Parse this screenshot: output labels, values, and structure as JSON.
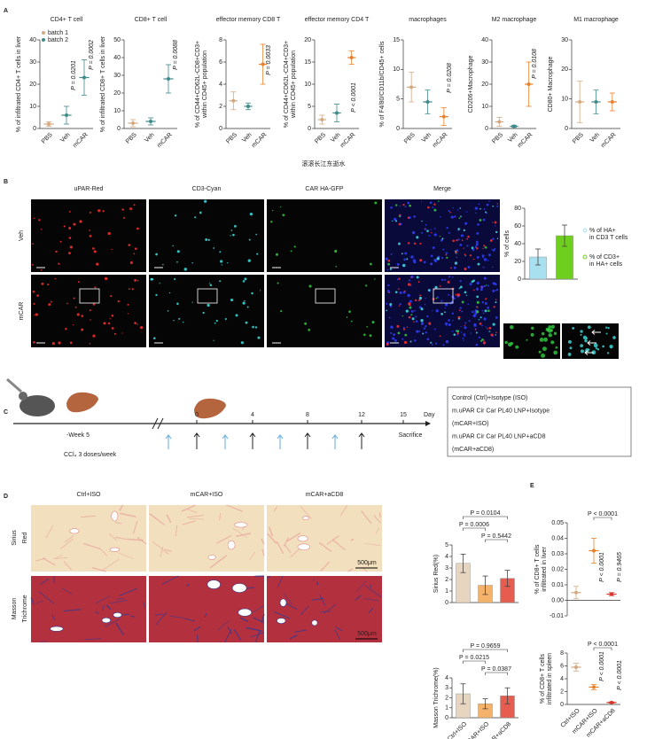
{
  "chart_data": [
    {
      "type": "dot",
      "title": "CD4+ T cell",
      "y_label": [
        "% of infiltrated CD4+ T cells in liver"
      ],
      "categories": [
        "PBS",
        "Veh",
        "mCAR"
      ],
      "values": [
        2,
        6,
        23
      ],
      "errors": [
        1,
        4,
        8
      ],
      "colors": [
        "#d4a980",
        "#3e8a8a",
        "#3e8a8a"
      ],
      "ylim": [
        0,
        40
      ],
      "yticks": [
        0,
        10,
        20,
        30,
        40
      ],
      "legend": [
        {
          "name": "batch 1",
          "color": "#d4a980"
        },
        {
          "name": "batch 2",
          "color": "#3e8a8a"
        }
      ],
      "annotations": [
        {
          "text": "P = 0.0201",
          "color": "#333333"
        },
        {
          "text": "P = 0.0002",
          "color": "#333333"
        }
      ]
    },
    {
      "type": "dot",
      "title": "CD8+ T cell",
      "y_label": [
        "% of infiltrated CD8+ T cells in liver"
      ],
      "categories": [
        "PBS",
        "Veh",
        "mCAR"
      ],
      "values": [
        3,
        4,
        28
      ],
      "errors": [
        2,
        2,
        8
      ],
      "colors": [
        "#d4a980",
        "#3e8a8a",
        "#3e8a8a"
      ],
      "ylim": [
        0,
        50
      ],
      "yticks": [
        0,
        10,
        20,
        30,
        40,
        50
      ],
      "annotations": [
        {
          "text": "P = 0.0088",
          "color": "#333333"
        }
      ]
    },
    {
      "type": "dot",
      "title": "effector memory CD8 T",
      "y_label": [
        "% of CD44+CD62L-CD8+CD3+",
        "within CD45+ population"
      ],
      "categories": [
        "PBS",
        "Veh",
        "mCAR"
      ],
      "values": [
        2.5,
        2,
        5.8
      ],
      "errors": [
        0.8,
        0.3,
        1.8
      ],
      "colors": [
        "#d4a980",
        "#3e8a8a",
        "#e8812a"
      ],
      "ylim": [
        0,
        8
      ],
      "yticks": [
        0,
        2,
        4,
        6,
        8
      ],
      "annotations": [
        {
          "text": "P = 0.0033",
          "color": "#e8812a"
        }
      ]
    },
    {
      "type": "dot",
      "title": "effector memory CD4 T",
      "y_label": [
        "% of CD44+CD62L-CD4+CD3+",
        "within CD45+ population"
      ],
      "categories": [
        "PBS",
        "Veh",
        "mCAR"
      ],
      "values": [
        2,
        3.5,
        16
      ],
      "errors": [
        1,
        2,
        1.5
      ],
      "colors": [
        "#d4a980",
        "#3e8a8a",
        "#e8812a"
      ],
      "ylim": [
        0,
        20
      ],
      "yticks": [
        0,
        5,
        10,
        15,
        20
      ],
      "annotations": [
        {
          "text": "P < 0.0001",
          "color": "#e8812a"
        }
      ]
    },
    {
      "type": "dot",
      "title": "macrophages",
      "y_label": [
        "% of F4/80/CD11b/CD45+ cells"
      ],
      "categories": [
        "PBS",
        "Veh",
        "mCAR"
      ],
      "values": [
        7,
        4.5,
        2
      ],
      "errors": [
        2.5,
        2,
        1.5
      ],
      "colors": [
        "#d4a980",
        "#3e8a8a",
        "#e8812a"
      ],
      "ylim": [
        0,
        15
      ],
      "yticks": [
        0,
        5,
        10,
        15
      ],
      "annotations": [
        {
          "text": "P = 0.0208",
          "color": "#e8812a"
        }
      ]
    },
    {
      "type": "dot",
      "title": "M2 macrophage",
      "y_label": [
        "CD206+Macrophage"
      ],
      "categories": [
        "PBS",
        "Veh",
        "mCAR"
      ],
      "values": [
        3,
        1,
        20
      ],
      "errors": [
        2,
        0.5,
        10
      ],
      "colors": [
        "#d4a980",
        "#3e8a8a",
        "#e8812a"
      ],
      "ylim": [
        0,
        40
      ],
      "yticks": [
        0,
        10,
        20,
        30,
        40
      ],
      "annotations": [
        {
          "text": "P = 0.0108",
          "color": "#e8812a"
        }
      ]
    },
    {
      "type": "dot",
      "title": "M1 macrophage",
      "y_label": [
        "CD80+ Macrophage"
      ],
      "categories": [
        "PBS",
        "Veh",
        "mCAR"
      ],
      "values": [
        9,
        9,
        9
      ],
      "errors": [
        7,
        4,
        3
      ],
      "colors": [
        "#d4a980",
        "#3e8a8a",
        "#e8812a"
      ],
      "ylim": [
        0,
        30
      ],
      "yticks": [
        0,
        10,
        20,
        30
      ]
    },
    {
      "type": "bar",
      "y_label": [
        "% of cells"
      ],
      "categories": [
        null,
        null
      ],
      "values": [
        25,
        49
      ],
      "errors": [
        9,
        12
      ],
      "colors": [
        "#a8e0f0",
        "#6fcf1f"
      ],
      "ylim": [
        0,
        80
      ],
      "yticks": [
        0,
        20,
        40,
        60,
        80
      ],
      "legend_lines": [
        [
          "% of HA+",
          "in CD3 T cells"
        ],
        [
          "% of CD3+",
          "in HA+ cells"
        ]
      ]
    },
    {
      "type": "bar",
      "y_label": [
        "Sirius Red(%)"
      ],
      "categories": [
        null,
        null,
        null
      ],
      "values": [
        3.4,
        1.5,
        2.1
      ],
      "errors": [
        0.8,
        0.8,
        0.7
      ],
      "colors": [
        "#e8d5bf",
        "#f5b26b",
        "#e65c4f"
      ],
      "ylim": [
        0,
        5
      ],
      "yticks": [
        0,
        1,
        2,
        3,
        4,
        5
      ],
      "brackets": [
        "P = 0.0104",
        "P = 0.0006",
        "P = 0.5442"
      ]
    },
    {
      "type": "bar",
      "y_label": [
        "Masson Trichrome(%)"
      ],
      "categories": [
        "Ctrl+ISO",
        "mCAR+ISO",
        "mCAR+aCD8"
      ],
      "values": [
        2.4,
        1.4,
        2.2
      ],
      "errors": [
        1.0,
        0.5,
        0.8
      ],
      "colors": [
        "#e8d5bf",
        "#f5b26b",
        "#e65c4f"
      ],
      "ylim": [
        0,
        4
      ],
      "yticks": [
        0,
        1,
        2,
        3,
        4
      ],
      "brackets": [
        "P = 0.9659",
        "P = 0.0215",
        "P = 0.0387"
      ]
    },
    {
      "type": "dot",
      "y_label": [
        "% of  CD8+ T cells",
        "infiltrated in liver"
      ],
      "categories": [
        null,
        null,
        null
      ],
      "values": [
        0.005,
        0.032,
        0.004
      ],
      "errors": [
        0.004,
        0.008,
        0.001
      ],
      "colors": [
        "#d4a980",
        "#e8812a",
        "#d9342b"
      ],
      "ylim": [
        -0.01,
        0.05
      ],
      "yticks": [
        -0.01,
        {
          "value": 0,
          "label": "0.00"
        },
        0.01,
        0.02,
        0.03,
        0.04,
        0.05
      ],
      "brackets": [
        "P < 0.0001"
      ],
      "annotations": [
        {
          "text": "P < 0.0001",
          "color": "#e8812a"
        },
        {
          "text": "P = 0.9465",
          "color": "#d9342b"
        }
      ]
    },
    {
      "type": "dot",
      "y_label": [
        "% of CD8+ T cells",
        "infiltrated in spleen"
      ],
      "categories": [
        "Ctrl+ISO",
        "mCAR+ISO",
        "mCAR+aCD8"
      ],
      "values": [
        5.8,
        2.7,
        0.3
      ],
      "errors": [
        0.6,
        0.4,
        0.1
      ],
      "colors": [
        "#d4a980",
        "#e8812a",
        "#d9342b"
      ],
      "ylim": [
        0,
        8
      ],
      "yticks": [
        0,
        2,
        4,
        6,
        8
      ],
      "brackets": [
        "P < 0.0001"
      ],
      "annotations": [
        {
          "text": "P < 0.0001",
          "color": "#e8812a"
        },
        {
          "text": "P < 0.0001",
          "color": "#d9342b"
        }
      ]
    }
  ],
  "panel_labels": [
    "A",
    "B",
    "C",
    "D",
    "E"
  ],
  "watermark": "滚滚长江东逝水",
  "panel_b": {
    "columns": [
      "uPAR-Red",
      "CD3-Cyan",
      "CAR HA-GFP",
      "Merge"
    ],
    "rows": [
      "Veh",
      "mCAR"
    ]
  },
  "panel_c": {
    "start": "-Week 5",
    "ticks": [
      "0",
      "4",
      "8",
      "12",
      "15"
    ],
    "unit": "Day",
    "end_label": "Sacrifice",
    "regimen": "CCl₄ 3 doses/week",
    "groups": [
      "Control (Ctrl)+Isotype (ISO)",
      "m.uPAR Cir Car PL40 LNP+Isotype",
      "(mCAR+ISO)",
      "m.uPAR Cir Car PL40 LNP+aCD8",
      "(mCAR+aCD8)"
    ]
  },
  "panel_d": {
    "columns": [
      "Ctrl+ISO",
      "mCAR+ISO",
      "mCAR+aCD8"
    ],
    "rows": [
      "Sirius Red",
      "Masson Trichrome"
    ],
    "scale_bar": "500μm"
  }
}
